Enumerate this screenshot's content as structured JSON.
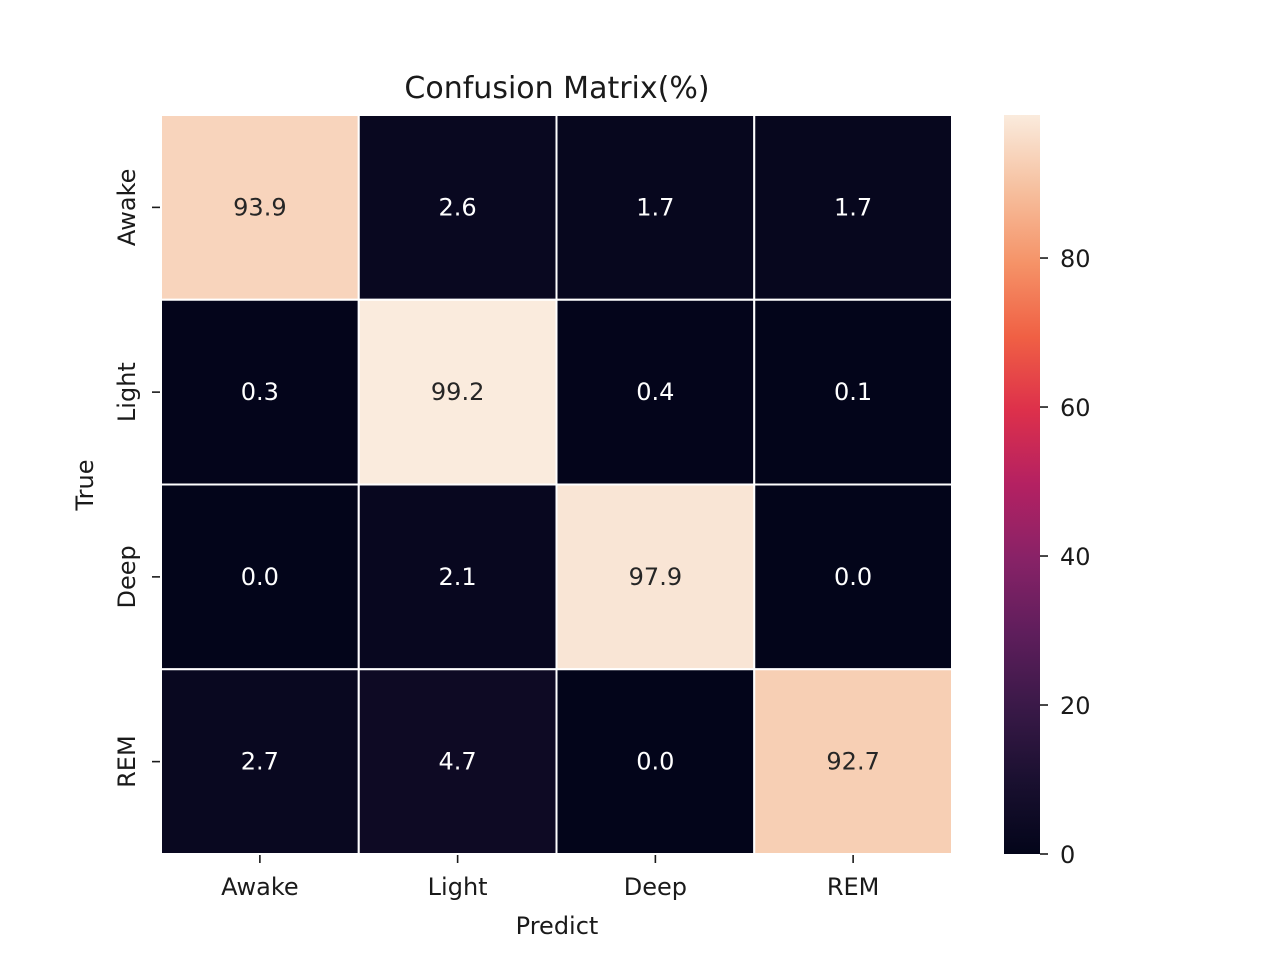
{
  "chart_data": {
    "type": "heatmap",
    "title": "Confusion Matrix(%)",
    "xlabel": "Predict",
    "ylabel": "True",
    "x_categories": [
      "Awake",
      "Light",
      "Deep",
      "REM"
    ],
    "y_categories": [
      "Awake",
      "Light",
      "Deep",
      "REM"
    ],
    "values": [
      [
        93.9,
        2.6,
        1.7,
        1.7
      ],
      [
        0.3,
        99.2,
        0.4,
        0.1
      ],
      [
        0.0,
        2.1,
        97.9,
        0.0
      ],
      [
        2.7,
        4.7,
        0.0,
        92.7
      ]
    ],
    "cell_labels": [
      [
        "93.9",
        "2.6",
        "1.7",
        "1.7"
      ],
      [
        "0.3",
        "99.2",
        "0.4",
        "0.1"
      ],
      [
        "0.0",
        "2.1",
        "97.9",
        "0.0"
      ],
      [
        "2.7",
        "4.7",
        "0.0",
        "92.7"
      ]
    ],
    "colorbar": {
      "min": 0,
      "max": 99.2,
      "ticks": [
        0,
        20,
        40,
        60,
        80
      ],
      "tick_labels": [
        "0",
        "20",
        "40",
        "60",
        "80"
      ],
      "colormap": "rocket"
    }
  }
}
